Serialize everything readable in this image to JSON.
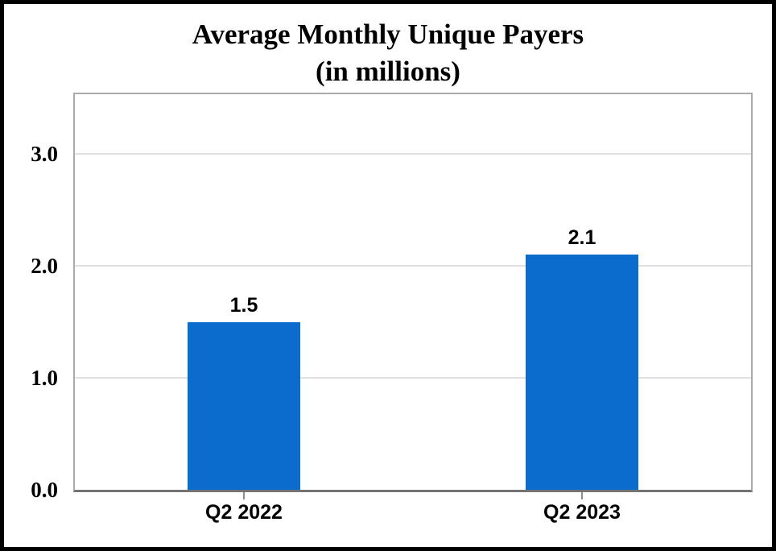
{
  "chart_data": {
    "type": "bar",
    "title_line1": "Average Monthly Unique Payers",
    "title_line2": "(in millions)",
    "categories": [
      "Q2 2022",
      "Q2 2023"
    ],
    "values": [
      1.5,
      2.1
    ],
    "data_labels": [
      "1.5",
      "2.1"
    ],
    "y_ticks": [
      0.0,
      1.0,
      2.0,
      3.0
    ],
    "y_tick_labels": [
      "0.0",
      "1.0",
      "2.0",
      "3.0"
    ],
    "ylim": [
      0,
      3.5
    ],
    "xlabel": "",
    "ylabel": "",
    "grid": true,
    "legend": "none",
    "colors": {
      "bar": "#0b6cce",
      "gridline": "#e0e0e0",
      "plot_border": "#ababab",
      "axis_line": "#737373",
      "tick": "#8c8c8c",
      "text": "#000000",
      "frame_border": "#000000",
      "background": "#ffffff"
    }
  }
}
